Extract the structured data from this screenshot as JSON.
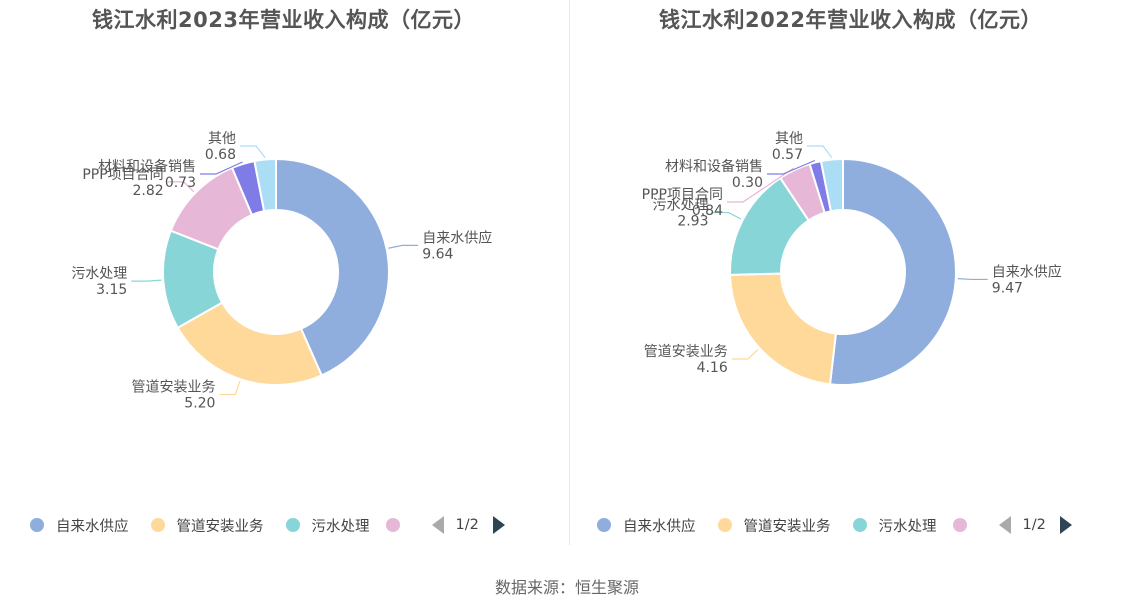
{
  "source": "数据来源：恒生聚源",
  "colors": [
    "#8faedd",
    "#fed999",
    "#88d5d8",
    "#e6b7d6",
    "#7f7de5",
    "#abddf5"
  ],
  "chart_data": [
    {
      "type": "pie",
      "title": "钱江水利2023年营业收入构成（亿元）",
      "slices": [
        {
          "name": "自来水供应",
          "value": 9.64,
          "label": "9.64"
        },
        {
          "name": "管道安装业务",
          "value": 5.2,
          "label": "5.20"
        },
        {
          "name": "污水处理",
          "value": 3.15,
          "label": "3.15"
        },
        {
          "name": "PPP项目合同",
          "value": 2.82,
          "label": "2.82"
        },
        {
          "name": "材料和设备销售",
          "value": 0.73,
          "label": "0.73"
        },
        {
          "name": "其他",
          "value": 0.68,
          "label": "0.68"
        }
      ],
      "legend": {
        "visible": [
          "自来水供应",
          "管道安装业务",
          "污水处理"
        ],
        "page": "1/2",
        "placement": "bottom"
      }
    },
    {
      "type": "pie",
      "title": "钱江水利2022年营业收入构成（亿元）",
      "slices": [
        {
          "name": "自来水供应",
          "value": 9.47,
          "label": "9.47"
        },
        {
          "name": "管道安装业务",
          "value": 4.16,
          "label": "4.16"
        },
        {
          "name": "污水处理",
          "value": 2.93,
          "label": "2.93"
        },
        {
          "name": "PPP项目合同",
          "value": 0.84,
          "label": "0.84"
        },
        {
          "name": "材料和设备销售",
          "value": 0.3,
          "label": "0.30"
        },
        {
          "name": "其他",
          "value": 0.57,
          "label": "0.57"
        }
      ],
      "legend": {
        "visible": [
          "自来水供应",
          "管道安装业务",
          "污水处理"
        ],
        "page": "1/2",
        "placement": "bottom"
      }
    }
  ]
}
